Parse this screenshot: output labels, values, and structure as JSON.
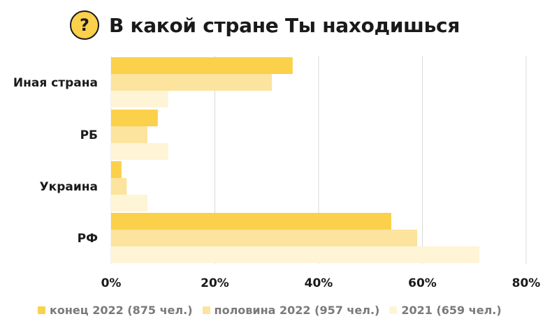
{
  "header": {
    "badge_symbol": "?",
    "title": "В какой стране Ты находишься"
  },
  "chart_data": {
    "type": "bar",
    "orientation": "horizontal",
    "title": "В какой стране Ты находишься",
    "categories": [
      "Иная страна",
      "РБ",
      "Украина",
      "РФ"
    ],
    "series": [
      {
        "name": "конец 2022 (875 чел.)",
        "values": [
          35,
          9,
          2,
          54
        ],
        "color": "#fbd04b"
      },
      {
        "name": "половина 2022 (957 чел.)",
        "values": [
          31,
          7,
          3,
          59
        ],
        "color": "#fce49e"
      },
      {
        "name": "2021 (659 чел.)",
        "values": [
          11,
          11,
          7,
          71
        ],
        "color": "#fef4d6"
      }
    ],
    "xlim": [
      0,
      80
    ],
    "xticks": [
      "0%",
      "20%",
      "40%",
      "60%",
      "80%"
    ],
    "grid": true,
    "legend_position": "bottom"
  }
}
